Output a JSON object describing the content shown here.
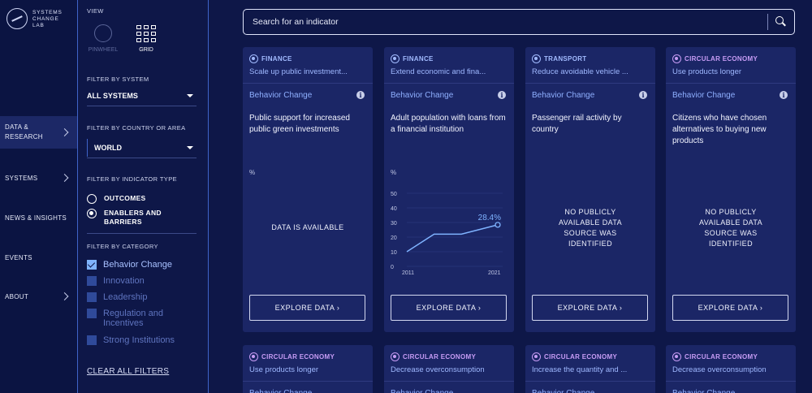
{
  "brand": {
    "line1": "SYSTEMS",
    "line2": "CHANGE",
    "line3": "LAB"
  },
  "nav": [
    {
      "label": "DATA &",
      "label2": "RESEARCH"
    },
    {
      "label": "SYSTEMS"
    },
    {
      "label": "NEWS & INSIGHTS"
    },
    {
      "label": "EVENTS"
    },
    {
      "label": "ABOUT"
    }
  ],
  "filters": {
    "view_heading": "VIEW",
    "view_pinwheel": "PINWHEEL",
    "view_grid": "GRID",
    "system_heading": "FILTER BY SYSTEM",
    "system_value": "ALL SYSTEMS",
    "country_heading": "FILTER BY COUNTRY OR AREA",
    "country_value": "WORLD",
    "type_heading": "FILTER BY INDICATOR TYPE",
    "type_outcomes": "OUTCOMES",
    "type_enablers_1": "ENABLERS AND",
    "type_enablers_2": "BARRIERS",
    "category_heading": "FILTER BY CATEGORY",
    "categories": [
      "Behavior Change",
      "Innovation",
      "Leadership",
      "Regulation and",
      "Incentives",
      "Strong Institutions"
    ],
    "clear_all": "CLEAR ALL FILTERS"
  },
  "search": {
    "placeholder": "Search for an indicator"
  },
  "cards": [
    {
      "category": "FINANCE",
      "subtitle": "Scale up public investment...",
      "type": "Behavior Change",
      "indicator": "Public support for increased public green investments",
      "unit": "%",
      "message": "DATA IS AVAILABLE",
      "button": "EXPLORE DATA ›"
    },
    {
      "category": "FINANCE",
      "subtitle": "Extend economic and fina...",
      "type": "Behavior Change",
      "indicator": "Adult population with loans from a financial institution",
      "unit": "%",
      "value_label": "28.4%",
      "button": "EXPLORE DATA ›"
    },
    {
      "category": "TRANSPORT",
      "subtitle": "Reduce avoidable vehicle ...",
      "type": "Behavior Change",
      "indicator": "Passenger rail activity by country",
      "message_1": "NO PUBLICLY",
      "message_2": "AVAILABLE DATA",
      "message_3": "SOURCE WAS",
      "message_4": "IDENTIFIED",
      "button": "EXPLORE DATA ›"
    },
    {
      "category": "CIRCULAR ECONOMY",
      "subtitle": "Use products longer",
      "type": "Behavior Change",
      "indicator": "Citizens who have chosen alternatives to buying new products",
      "message_1": "NO PUBLICLY",
      "message_2": "AVAILABLE DATA",
      "message_3": "SOURCE WAS",
      "message_4": "IDENTIFIED",
      "button": "EXPLORE DATA ›"
    },
    {
      "category": "CIRCULAR ECONOMY",
      "subtitle": "Use products longer",
      "type": "Behavior Change"
    },
    {
      "category": "CIRCULAR ECONOMY",
      "subtitle": "Decrease overconsumption",
      "type": "Behavior Change"
    },
    {
      "category": "CIRCULAR ECONOMY",
      "subtitle": "Increase the quantity and ...",
      "type": "Behavior Change"
    },
    {
      "category": "CIRCULAR ECONOMY",
      "subtitle": "Decrease overconsumption",
      "type": "Behavior Change"
    }
  ],
  "chart_data": {
    "type": "line",
    "x": [
      2011,
      2014,
      2017,
      2021
    ],
    "values": [
      10,
      22,
      22,
      28.4
    ],
    "x_ticks": [
      "2011",
      "2021"
    ],
    "y_ticks": [
      "0",
      "10",
      "20",
      "30",
      "40",
      "50"
    ],
    "ylim": [
      0,
      50
    ],
    "last_label": "28.4%",
    "color": "#7fb3ff"
  }
}
